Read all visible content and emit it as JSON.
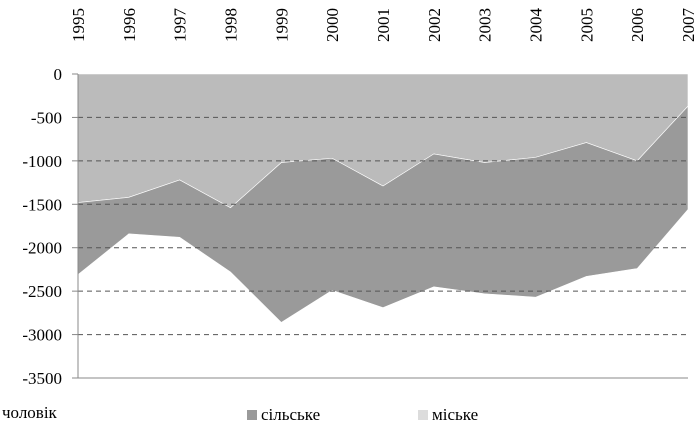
{
  "chart_data": {
    "type": "area",
    "categories": [
      "1995",
      "1996",
      "1997",
      "1998",
      "1999",
      "2000",
      "2001",
      "2002",
      "2003",
      "2004",
      "2005",
      "2006",
      "2007"
    ],
    "series": [
      {
        "name": "сільське",
        "color": "#9a9a9a",
        "values": [
          -830,
          -420,
          -660,
          -740,
          -1840,
          -1520,
          -1400,
          -1530,
          -1510,
          -1610,
          -1540,
          -1240,
          -1190
        ]
      },
      {
        "name": "міське",
        "color": "#bbbbbb",
        "values": [
          -1480,
          -1420,
          -1220,
          -1540,
          -1020,
          -970,
          -1290,
          -920,
          -1020,
          -960,
          -790,
          -1000,
          -370
        ]
      }
    ],
    "stacked": true,
    "unit_label": "чоловік",
    "ylim": [
      -3500,
      0
    ],
    "yticks": [
      0,
      -500,
      -1000,
      -1500,
      -2000,
      -2500,
      -3000,
      -3500
    ],
    "grid": true
  }
}
